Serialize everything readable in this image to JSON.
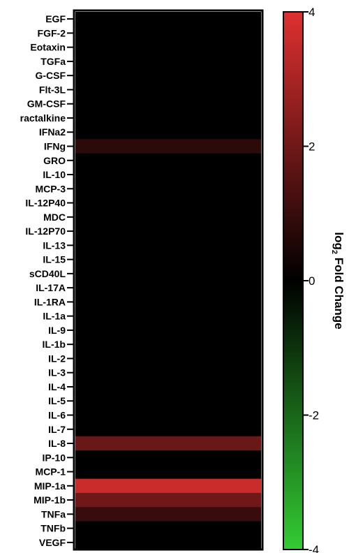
{
  "chart_data": {
    "type": "heatmap",
    "rows": [
      "EGF",
      "FGF-2",
      "Eotaxin",
      "TGFa",
      "G-CSF",
      "Flt-3L",
      "GM-CSF",
      "ractalkine",
      "IFNa2",
      "IFNg",
      "GRO",
      "IL-10",
      "MCP-3",
      "IL-12P40",
      "MDC",
      "IL-12P70",
      "IL-13",
      "IL-15",
      "sCD40L",
      "IL-17A",
      "IL-1RA",
      "IL-1a",
      "IL-9",
      "IL-1b",
      "IL-2",
      "IL-3",
      "IL-4",
      "IL-5",
      "IL-6",
      "IL-7",
      "IL-8",
      "IP-10",
      "MCP-1",
      "MIP-1a",
      "MIP-1b",
      "TNFa",
      "TNFb",
      "VEGF"
    ],
    "values": [
      0,
      0,
      0,
      0,
      0,
      0,
      0,
      0,
      0,
      0.8,
      0,
      0,
      0,
      0,
      0,
      0,
      0,
      0,
      0,
      0,
      0,
      0,
      0,
      0,
      0,
      0,
      0,
      0,
      0,
      0,
      1.9,
      0,
      0,
      3.6,
      2.0,
      1.0,
      0,
      0
    ],
    "colorbar": {
      "min": -4,
      "max": 4,
      "ticks": [
        "4",
        "2",
        "0",
        "-2",
        "-4"
      ],
      "title_prefix": "log",
      "title_sub": "2",
      "title_suffix": " Fold Change",
      "colors": {
        "high": "#e03030",
        "mid": "#000000",
        "low": "#33cc33"
      }
    }
  }
}
